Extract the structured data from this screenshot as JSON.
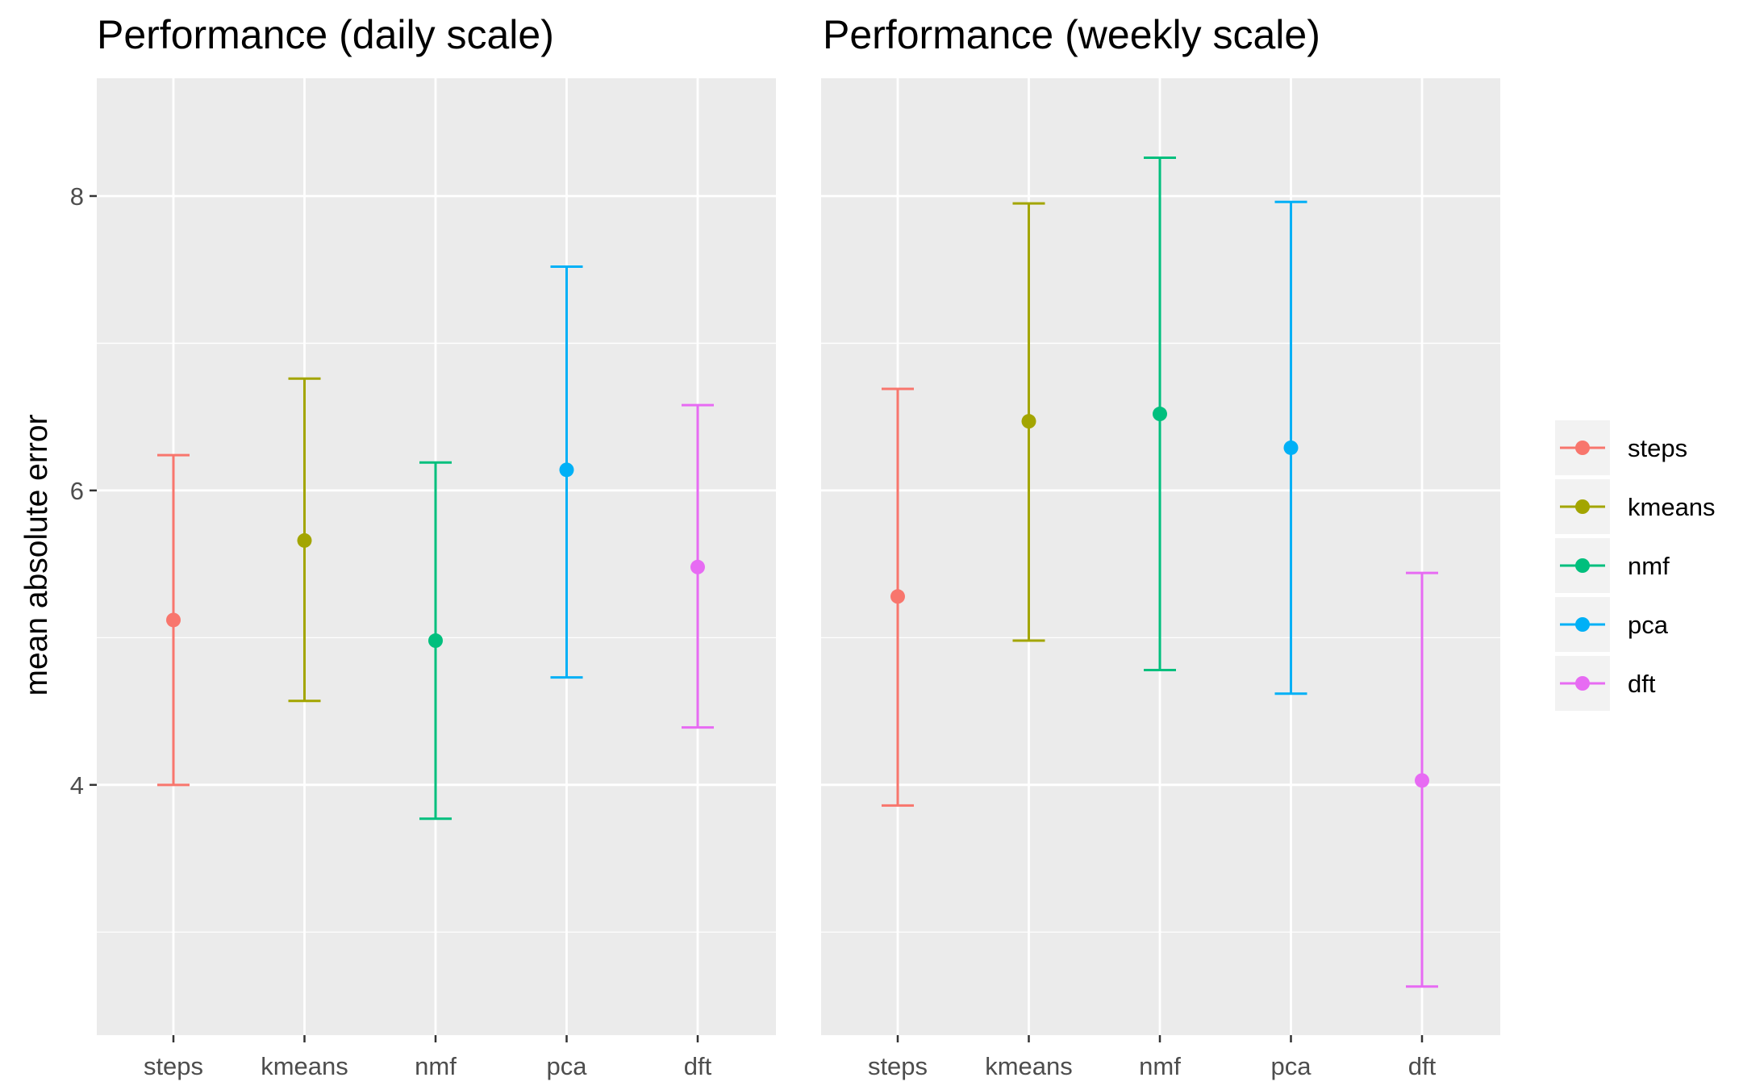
{
  "chart_data": {
    "type": "errorbar",
    "ylabel": "mean absolute error",
    "ylim": [
      2.3,
      8.8
    ],
    "y_ticks": [
      4,
      6,
      8
    ],
    "y_minor_gridlines": [
      3,
      5,
      7
    ],
    "grid": true,
    "legend_position": "right",
    "categories": [
      "steps",
      "kmeans",
      "nmf",
      "pca",
      "dft"
    ],
    "colors": {
      "steps": "#F8766D",
      "kmeans": "#A3A500",
      "nmf": "#00BF7D",
      "pca": "#00B0F6",
      "dft": "#E76BF3"
    },
    "panels": [
      {
        "title": "Performance (daily scale)",
        "series": [
          {
            "category": "steps",
            "mean": 5.12,
            "lower": 4.0,
            "upper": 6.24
          },
          {
            "category": "kmeans",
            "mean": 5.66,
            "lower": 4.57,
            "upper": 6.76
          },
          {
            "category": "nmf",
            "mean": 4.98,
            "lower": 3.77,
            "upper": 6.19
          },
          {
            "category": "pca",
            "mean": 6.14,
            "lower": 4.73,
            "upper": 7.52
          },
          {
            "category": "dft",
            "mean": 5.48,
            "lower": 4.39,
            "upper": 6.58
          }
        ]
      },
      {
        "title": "Performance (weekly scale)",
        "series": [
          {
            "category": "steps",
            "mean": 5.28,
            "lower": 3.86,
            "upper": 6.69
          },
          {
            "category": "kmeans",
            "mean": 6.47,
            "lower": 4.98,
            "upper": 7.95
          },
          {
            "category": "nmf",
            "mean": 6.52,
            "lower": 4.78,
            "upper": 8.26
          },
          {
            "category": "pca",
            "mean": 6.29,
            "lower": 4.62,
            "upper": 7.96
          },
          {
            "category": "dft",
            "mean": 4.03,
            "lower": 2.63,
            "upper": 5.44
          }
        ]
      }
    ],
    "legend": [
      "steps",
      "kmeans",
      "nmf",
      "pca",
      "dft"
    ]
  }
}
